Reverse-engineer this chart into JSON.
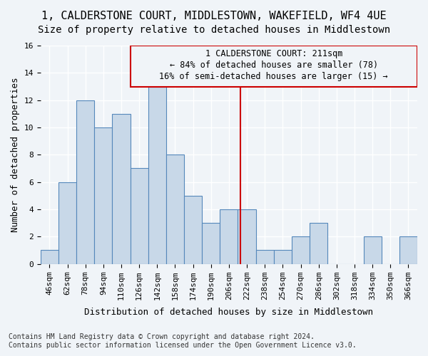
{
  "title_line1": "1, CALDERSTONE COURT, MIDDLESTOWN, WAKEFIELD, WF4 4UE",
  "title_line2": "Size of property relative to detached houses in Middlestown",
  "xlabel": "Distribution of detached houses by size in Middlestown",
  "ylabel": "Number of detached properties",
  "categories": [
    "46sqm",
    "62sqm",
    "78sqm",
    "94sqm",
    "110sqm",
    "126sqm",
    "142sqm",
    "158sqm",
    "174sqm",
    "190sqm",
    "206sqm",
    "222sqm",
    "238sqm",
    "254sqm",
    "270sqm",
    "286sqm",
    "302sqm",
    "318sqm",
    "334sqm",
    "350sqm",
    "366sqm"
  ],
  "values": [
    1,
    6,
    12,
    10,
    11,
    7,
    13,
    8,
    5,
    3,
    4,
    4,
    1,
    1,
    2,
    3,
    0,
    0,
    2,
    0,
    2
  ],
  "bar_color": "#c8d8e8",
  "bar_edge_color": "#5588bb",
  "reference_line_x": 10.65,
  "reference_line_color": "#cc0000",
  "annotation_title": "1 CALDERSTONE COURT: 211sqm",
  "annotation_line2": "← 84% of detached houses are smaller (78)",
  "annotation_line3": "16% of semi-detached houses are larger (15) →",
  "annotation_box_color": "#cc0000",
  "ylim": [
    0,
    16
  ],
  "yticks": [
    0,
    2,
    4,
    6,
    8,
    10,
    12,
    14,
    16
  ],
  "footer_line1": "Contains HM Land Registry data © Crown copyright and database right 2024.",
  "footer_line2": "Contains public sector information licensed under the Open Government Licence v3.0.",
  "background_color": "#f0f4f8",
  "grid_color": "#ffffff",
  "title_fontsize": 11,
  "subtitle_fontsize": 10,
  "axis_label_fontsize": 9,
  "tick_fontsize": 8,
  "annotation_fontsize": 8.5,
  "footer_fontsize": 7
}
